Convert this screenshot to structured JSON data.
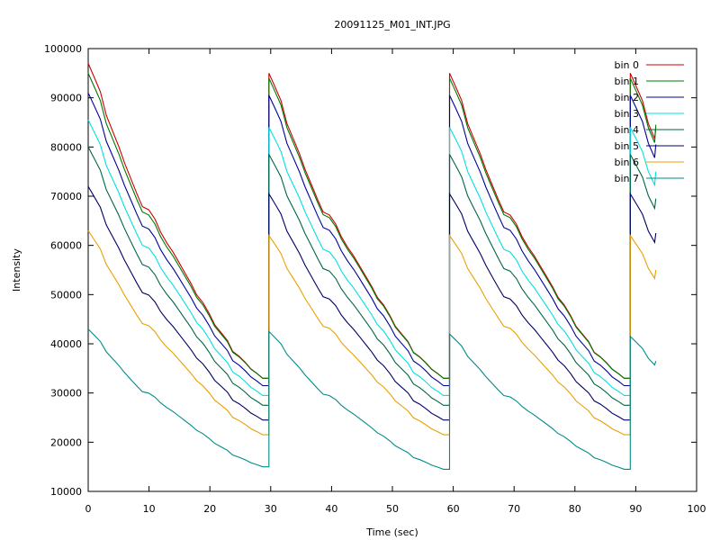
{
  "chart_data": {
    "type": "line",
    "title": "20091125_M01_INT.JPG",
    "xlabel": "Time (sec)",
    "ylabel": "Intensity",
    "xlim": [
      0,
      100
    ],
    "ylim": [
      10000,
      100000
    ],
    "xticks": [
      0,
      10,
      20,
      30,
      40,
      50,
      60,
      70,
      80,
      90,
      100
    ],
    "yticks": [
      10000,
      20000,
      30000,
      40000,
      50000,
      60000,
      70000,
      80000,
      90000,
      100000
    ],
    "grid": false,
    "legend_position": "top-right",
    "period": 29.7,
    "cycle_fraction": [
      0,
      0.034,
      0.067,
      0.1,
      0.135,
      0.17,
      0.2,
      0.235,
      0.27,
      0.3,
      0.335,
      0.37,
      0.4,
      0.435,
      0.47,
      0.5,
      0.535,
      0.57,
      0.6,
      0.635,
      0.67,
      0.7,
      0.735,
      0.77,
      0.8,
      0.835,
      0.87,
      0.9,
      0.935,
      0.966,
      1.0
    ],
    "cycle_shape": [
      1.0,
      0.955,
      0.91,
      0.835,
      0.785,
      0.735,
      0.685,
      0.635,
      0.585,
      0.545,
      0.535,
      0.505,
      0.465,
      0.43,
      0.4,
      0.37,
      0.335,
      0.3,
      0.265,
      0.24,
      0.205,
      0.17,
      0.145,
      0.12,
      0.085,
      0.07,
      0.05,
      0.03,
      0.015,
      0.0,
      0.0
    ],
    "end_time": 93.3,
    "series": [
      {
        "name": "bin 0",
        "color": "#cc0000",
        "peaks": [
          97000,
          95000,
          95000,
          95000
        ],
        "troughs": [
          33000,
          33000,
          33000
        ],
        "end": 84000
      },
      {
        "name": "bin 1",
        "color": "#007700",
        "peaks": [
          95000,
          94000,
          94000,
          94000
        ],
        "troughs": [
          33000,
          33000,
          33000
        ],
        "end": 84500
      },
      {
        "name": "bin 2",
        "color": "#000099",
        "peaks": [
          91000,
          90500,
          90500,
          90500
        ],
        "troughs": [
          31500,
          31500,
          31500
        ],
        "end": 80500
      },
      {
        "name": "bin 3",
        "color": "#00e0e0",
        "peaks": [
          85500,
          84000,
          84000,
          84000
        ],
        "troughs": [
          29500,
          29500,
          29500
        ],
        "end": 75000
      },
      {
        "name": "bin 4",
        "color": "#006644",
        "peaks": [
          80000,
          78500,
          78500,
          78500
        ],
        "troughs": [
          27500,
          27500,
          27500
        ],
        "end": 69500
      },
      {
        "name": "bin 5",
        "color": "#000066",
        "peaks": [
          72000,
          70500,
          70500,
          70500
        ],
        "troughs": [
          24500,
          24500,
          24500
        ],
        "end": 62500
      },
      {
        "name": "bin 6",
        "color": "#e8a000",
        "peaks": [
          63000,
          62000,
          62000,
          62000
        ],
        "troughs": [
          21500,
          21500,
          21500
        ],
        "end": 55000
      },
      {
        "name": "bin 7",
        "color": "#008b8b",
        "peaks": [
          43000,
          42500,
          42000,
          41500
        ],
        "troughs": [
          15000,
          14500,
          14500
        ],
        "end": 36500
      }
    ]
  }
}
